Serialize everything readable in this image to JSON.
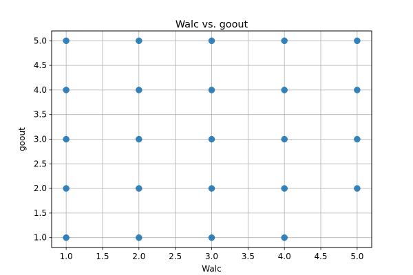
{
  "chart_data": {
    "type": "scatter",
    "title": "Walc vs. goout",
    "xlabel": "Walc",
    "ylabel": "goout",
    "xlim": [
      0.8,
      5.2
    ],
    "ylim": [
      0.8,
      5.2
    ],
    "xticks": [
      1.0,
      1.5,
      2.0,
      2.5,
      3.0,
      3.5,
      4.0,
      4.5,
      5.0
    ],
    "yticks": [
      1.0,
      1.5,
      2.0,
      2.5,
      3.0,
      3.5,
      4.0,
      4.5,
      5.0
    ],
    "xtick_labels": [
      "1.0",
      "1.5",
      "2.0",
      "2.5",
      "3.0",
      "3.5",
      "4.0",
      "4.5",
      "5.0"
    ],
    "ytick_labels": [
      "1.0",
      "1.5",
      "2.0",
      "2.5",
      "3.0",
      "3.5",
      "4.0",
      "4.5",
      "5.0"
    ],
    "grid": true,
    "marker_color": "#1f77b4",
    "points": [
      {
        "x": 1,
        "y": 1
      },
      {
        "x": 1,
        "y": 2
      },
      {
        "x": 1,
        "y": 3
      },
      {
        "x": 1,
        "y": 4
      },
      {
        "x": 1,
        "y": 5
      },
      {
        "x": 2,
        "y": 1
      },
      {
        "x": 2,
        "y": 2
      },
      {
        "x": 2,
        "y": 3
      },
      {
        "x": 2,
        "y": 4
      },
      {
        "x": 2,
        "y": 5
      },
      {
        "x": 3,
        "y": 1
      },
      {
        "x": 3,
        "y": 2
      },
      {
        "x": 3,
        "y": 3
      },
      {
        "x": 3,
        "y": 4
      },
      {
        "x": 3,
        "y": 5
      },
      {
        "x": 4,
        "y": 1
      },
      {
        "x": 4,
        "y": 2
      },
      {
        "x": 4,
        "y": 3
      },
      {
        "x": 4,
        "y": 4
      },
      {
        "x": 4,
        "y": 5
      },
      {
        "x": 5,
        "y": 2
      },
      {
        "x": 5,
        "y": 3
      },
      {
        "x": 5,
        "y": 4
      },
      {
        "x": 5,
        "y": 5
      }
    ]
  }
}
